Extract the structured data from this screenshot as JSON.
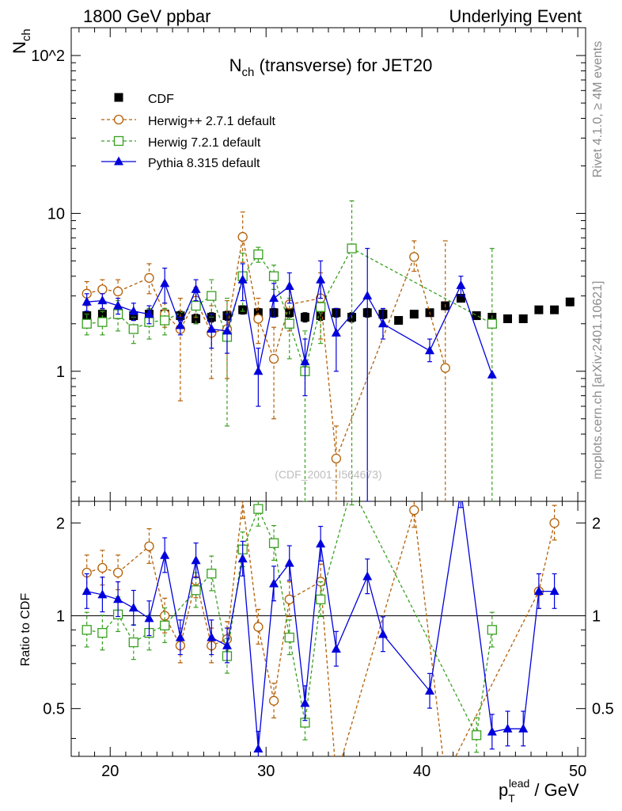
{
  "header": {
    "left": "1800 GeV ppbar",
    "right": "Underlying Event"
  },
  "side_labels": {
    "rivet": "Rivet 4.1.0, ≥ 4M events",
    "mcplots": "mcplots.cern.ch [arXiv:2401.10621]"
  },
  "watermark": "(CDF_2001_I564673)",
  "chart_data": {
    "type": "scatter",
    "title": "N_ch (transverse) for JET20",
    "xlabel": "p_T^lead / GeV",
    "ylabel": "N_ch",
    "ratio_ylabel": "Ratio to CDF",
    "yscale": "log",
    "xlim": [
      17.5,
      50.5
    ],
    "ylim": [
      0.15,
      150
    ],
    "ratio_ylim": [
      0.35,
      2.35
    ],
    "x_ticks": [
      "20",
      "30",
      "40",
      "50"
    ],
    "y_ticks": [
      "1",
      "10",
      "10^2"
    ],
    "ratio_ticks": [
      "0.5",
      "1",
      "2"
    ],
    "legend": [
      "CDF",
      "Herwig++ 2.7.1 default",
      "Herwig 7.2.1 default",
      "Pythia 8.315 default"
    ],
    "colors": {
      "cdf": "#000000",
      "herwigpp": "#b45f06",
      "herwig7": "#38a020",
      "pythia": "#0000dd"
    },
    "series": [
      {
        "name": "CDF",
        "x": [
          18.5,
          19.5,
          20.5,
          21.5,
          22.5,
          23.5,
          24.5,
          25.5,
          26.5,
          27.5,
          28.5,
          29.5,
          30.5,
          31.5,
          32.5,
          33.5,
          34.5,
          35.5,
          36.5,
          37.5,
          38.5,
          39.5,
          40.5,
          41.5,
          42.5,
          43.5,
          44.5,
          45.5,
          46.5,
          47.5,
          48.5,
          49.5
        ],
        "y": [
          2.25,
          2.3,
          2.3,
          2.25,
          2.3,
          2.3,
          2.25,
          2.15,
          2.2,
          2.25,
          2.45,
          2.35,
          2.35,
          2.35,
          2.2,
          2.25,
          2.35,
          2.2,
          2.35,
          2.3,
          2.1,
          2.3,
          2.35,
          2.6,
          2.9,
          2.25,
          2.2,
          2.15,
          2.15,
          2.45,
          2.45,
          2.75
        ],
        "err": [
          0.15,
          0.15,
          0.15,
          0.15,
          0.15,
          0.15,
          0.15,
          0.15,
          0.15,
          0.15,
          0.15,
          0.15,
          0.15,
          0.15,
          0.15,
          0.15,
          0.15,
          0.15,
          0.15,
          0.15,
          0.1,
          0.1,
          0.1,
          0.15,
          0.15,
          0.1,
          0.1,
          0.1,
          0.1,
          0.1,
          0.1,
          0.15
        ]
      },
      {
        "name": "Herwig++ 2.7.1 default",
        "x": [
          18.5,
          19.5,
          20.5,
          22.5,
          23.5,
          24.5,
          25.5,
          26.5,
          27.5,
          28.5,
          29.5,
          30.5,
          31.5,
          33.5,
          34.5,
          39.5,
          41.5
        ],
        "y": [
          3.1,
          3.3,
          3.2,
          3.9,
          2.3,
          1.85,
          2.8,
          1.75,
          1.85,
          7.1,
          2.15,
          1.2,
          2.65,
          2.9,
          0.28,
          5.3,
          1.05
        ],
        "lo": [
          2.6,
          2.7,
          2.6,
          3.1,
          1.9,
          0.65,
          2.2,
          0.9,
          0.9,
          4.9,
          1.5,
          0.5,
          1.8,
          1.6,
          0.12,
          4.3,
          0.1
        ],
        "hi": [
          3.7,
          3.8,
          3.8,
          4.8,
          2.7,
          2.9,
          3.4,
          2.6,
          2.8,
          10.2,
          2.9,
          1.9,
          3.5,
          4.2,
          0.45,
          6.7,
          6.7
        ],
        "ratio": [
          1.38,
          1.43,
          1.38,
          1.68,
          1.0,
          0.8,
          1.3,
          0.8,
          0.84,
          2.35,
          0.92,
          0.53,
          1.13,
          1.29,
          0.15,
          2.2,
          0.15
        ]
      },
      {
        "name": "Herwig 7.2.1 default",
        "x": [
          18.5,
          19.5,
          20.5,
          21.5,
          22.5,
          23.5,
          25.5,
          26.5,
          27.5,
          28.5,
          29.5,
          30.5,
          31.5,
          32.5,
          33.5,
          35.5,
          44.5
        ],
        "y": [
          2.0,
          2.05,
          2.3,
          1.85,
          2.05,
          2.1,
          2.6,
          3.0,
          1.65,
          4.0,
          5.5,
          4.0,
          2.0,
          1.0,
          2.55,
          6.0,
          2.0
        ],
        "lo": [
          1.7,
          1.7,
          1.8,
          1.5,
          1.6,
          1.7,
          2.0,
          2.2,
          0.45,
          2.4,
          4.9,
          3.3,
          1.2,
          0.15,
          1.5,
          0.1,
          0.1
        ],
        "hi": [
          2.3,
          2.4,
          2.8,
          2.2,
          2.5,
          2.5,
          3.2,
          3.8,
          2.9,
          5.6,
          6.1,
          4.7,
          2.9,
          1.8,
          3.7,
          12.0,
          6.0
        ],
        "ratio": [
          0.9,
          0.88,
          1.01,
          0.82,
          0.88,
          0.93,
          1.21,
          1.37,
          0.74,
          1.64,
          2.22,
          1.72,
          0.85,
          0.45,
          1.13,
          2.6,
          0.9
        ]
      },
      {
        "name": "Pythia 8.315 default",
        "x": [
          18.5,
          19.5,
          20.5,
          21.5,
          22.5,
          23.5,
          24.5,
          25.5,
          26.5,
          27.5,
          28.5,
          29.5,
          30.5,
          31.5,
          32.5,
          33.5,
          34.5,
          36.5,
          37.5,
          40.5,
          42.5,
          44.5
        ],
        "y": [
          2.75,
          2.8,
          2.6,
          2.4,
          2.3,
          3.6,
          1.95,
          3.3,
          1.85,
          1.8,
          3.8,
          1.0,
          2.9,
          3.45,
          1.15,
          3.8,
          1.75,
          3.0,
          2.0,
          1.35,
          3.5,
          0.95
        ],
        "lo": [
          2.4,
          2.5,
          2.3,
          2.1,
          2.0,
          2.7,
          1.7,
          2.8,
          1.4,
          1.3,
          2.8,
          0.6,
          2.2,
          2.7,
          0.7,
          2.9,
          1.0,
          0.15,
          1.6,
          1.15,
          3.0,
          0.95
        ],
        "hi": [
          3.1,
          3.1,
          2.9,
          2.7,
          2.6,
          4.5,
          2.2,
          3.8,
          2.3,
          2.3,
          4.8,
          1.4,
          3.6,
          4.2,
          1.6,
          5.0,
          2.5,
          6.0,
          2.5,
          1.6,
          4.0,
          0.95
        ],
        "ratio": [
          1.2,
          1.17,
          1.13,
          1.06,
          0.98,
          1.57,
          0.85,
          1.51,
          0.85,
          0.8,
          1.53,
          0.37,
          1.27,
          1.48,
          0.52,
          1.71,
          0.78,
          1.34,
          0.87,
          0.57,
          2.55,
          0.42
        ]
      }
    ],
    "pythia_ratio_extra": {
      "x": [
        45.5,
        46.5,
        47.5,
        48.5
      ],
      "ratio": [
        0.43,
        0.43,
        1.2,
        1.2
      ]
    },
    "herwigpp_ratio_extra": {
      "x": [
        47.5,
        48.5
      ],
      "ratio": [
        1.2,
        2.0
      ]
    },
    "herwig7_ratio_extra": {
      "x": [
        43.5
      ],
      "ratio": [
        0.41
      ]
    }
  }
}
